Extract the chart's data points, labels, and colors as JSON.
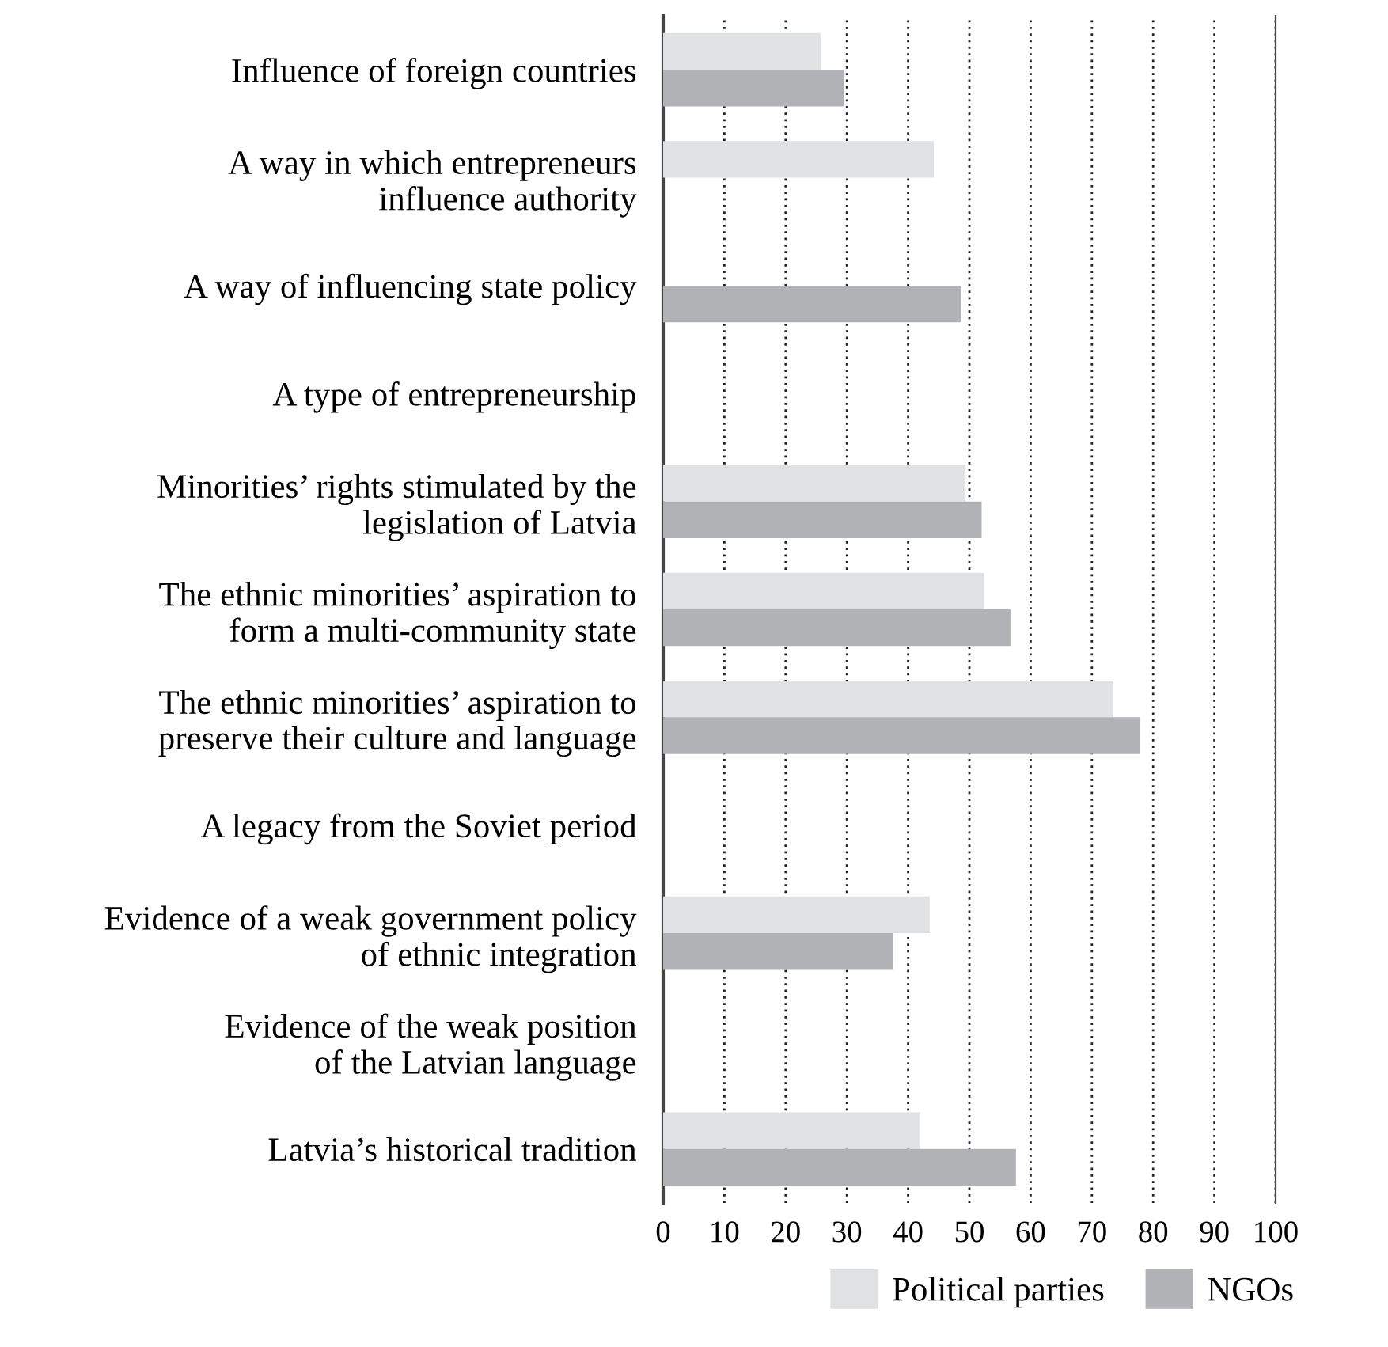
{
  "chart_data": {
    "type": "bar",
    "orientation": "horizontal",
    "categories": [
      "Influence of foreign countries",
      "A way in which entrepreneurs\ninfluence authority",
      "A way of influencing state policy",
      "A type of entrepreneurship",
      "Minorities’ rights stimulated by the\nlegislation of Latvia",
      "The ethnic minorities’ aspiration to\nform a multi-community state",
      "The ethnic minorities’ aspiration to\npreserve their culture and language",
      "A legacy from the Soviet period",
      "Evidence of a weak government policy\nof ethnic integration",
      "Evidence of the weak position\nof the Latvian language",
      "Latvia’s historical tradition"
    ],
    "series": [
      {
        "name": "Political parties",
        "color": "#e0e1e3",
        "values": [
          25.7,
          44.2,
          null,
          null,
          49.4,
          52.4,
          73.5,
          null,
          43.5,
          null,
          42.0
        ]
      },
      {
        "name": "NGOs",
        "color": "#b1b2b6",
        "values": [
          29.5,
          null,
          48.7,
          null,
          52.0,
          56.7,
          77.8,
          null,
          37.5,
          null,
          57.6
        ]
      }
    ],
    "xlim": [
      0,
      100
    ],
    "xticks": [
      0,
      10,
      20,
      30,
      40,
      50,
      60,
      70,
      80,
      90,
      100
    ],
    "grid": "x",
    "legend": "bottom right"
  }
}
